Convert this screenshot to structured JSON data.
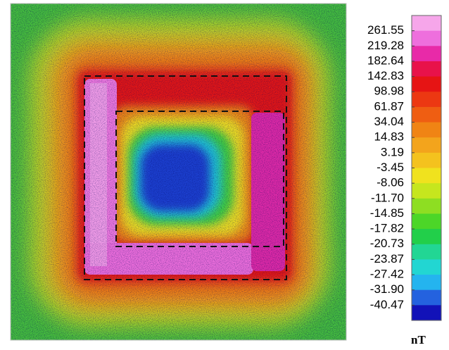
{
  "chart_data": {
    "type": "contour-map",
    "colorbar": {
      "levels": [
        261.55,
        219.28,
        182.64,
        142.83,
        98.98,
        61.87,
        34.04,
        14.83,
        3.19,
        -3.45,
        -8.06,
        {
          "value": -11.7,
          "label": "-11.70"
        },
        -14.85,
        -17.82,
        -20.73,
        -23.87,
        -27.42,
        {
          "value": -31.9,
          "label": "-31.90"
        },
        -40.47
      ],
      "colors": [
        "#f6a6ea",
        "#ee6fdd",
        "#e82aa8",
        "#e8124a",
        "#e61414",
        "#ec3812",
        "#ef5e12",
        "#f08414",
        "#f3a41c",
        "#f4c21e",
        "#f0e21e",
        "#c6e61e",
        "#8ede22",
        "#4cd628",
        "#22cf4a",
        "#22d694",
        "#22d6d2",
        "#24b4ef",
        "#2462df",
        "#1212b8"
      ],
      "unit": "nT"
    }
  }
}
